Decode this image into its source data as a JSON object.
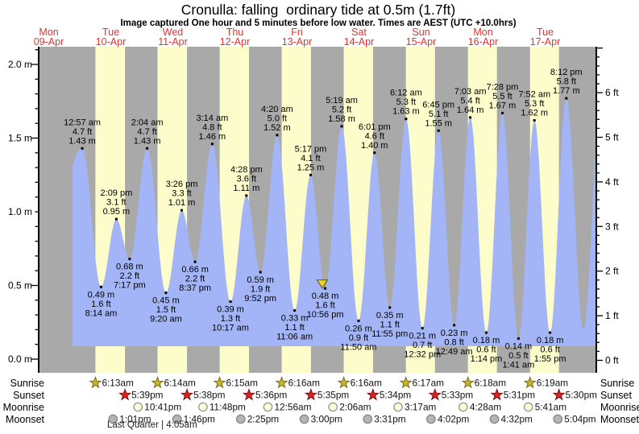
{
  "title": "Cronulla: falling  ordinary tide at 0.5m (1.7ft)",
  "subtitle": "Image captured One hour and 5 minutes before low water. Times are AEST (UTC +10.0hrs)",
  "chart_data": {
    "type": "area",
    "title": "Cronulla: falling  ordinary tide at 0.5m (1.7ft)",
    "ylabel_left": "meters",
    "ylabel_right": "feet",
    "ylim_m": [
      0.0,
      2.0
    ],
    "ylim_ft": [
      0,
      6
    ],
    "y_axis_left_labels": [
      "2.0 m",
      "1.5 m",
      "1.0 m",
      "0.5 m",
      "0.0 m"
    ],
    "y_axis_right_labels": [
      "6 ft",
      "5 ft",
      "4 ft",
      "3 ft",
      "2 ft",
      "1 ft",
      "0 ft"
    ],
    "days": [
      {
        "weekday": "Mon",
        "date": "09-Apr"
      },
      {
        "weekday": "Tue",
        "date": "10-Apr"
      },
      {
        "weekday": "Wed",
        "date": "11-Apr"
      },
      {
        "weekday": "Thu",
        "date": "12-Apr"
      },
      {
        "weekday": "Fri",
        "date": "13-Apr"
      },
      {
        "weekday": "Sat",
        "date": "14-Apr"
      },
      {
        "weekday": "Sun",
        "date": "15-Apr"
      },
      {
        "weekday": "Mon",
        "date": "16-Apr"
      },
      {
        "weekday": "Tue",
        "date": "17-Apr"
      }
    ],
    "extremes": [
      {
        "kind": "high",
        "day": 1,
        "time": "12:57 am",
        "ft": "4.7",
        "m": 1.43
      },
      {
        "kind": "low",
        "day": 1,
        "time": "8:14 am",
        "ft": "1.6",
        "m": 0.49
      },
      {
        "kind": "high",
        "day": 1,
        "time": "2:09 pm",
        "ft": "3.1",
        "m": 0.95
      },
      {
        "kind": "low",
        "day": 1,
        "time": "7:17 pm",
        "ft": "2.2",
        "m": 0.68
      },
      {
        "kind": "high",
        "day": 2,
        "time": "2:04 am",
        "ft": "4.7",
        "m": 1.43
      },
      {
        "kind": "low",
        "day": 2,
        "time": "9:20 am",
        "ft": "1.5",
        "m": 0.45
      },
      {
        "kind": "high",
        "day": 2,
        "time": "3:26 pm",
        "ft": "3.3",
        "m": 1.01
      },
      {
        "kind": "low",
        "day": 2,
        "time": "8:37 pm",
        "ft": "2.2",
        "m": 0.66
      },
      {
        "kind": "high",
        "day": 3,
        "time": "3:14 am",
        "ft": "4.8",
        "m": 1.46
      },
      {
        "kind": "low",
        "day": 3,
        "time": "10:17 am",
        "ft": "1.3",
        "m": 0.39
      },
      {
        "kind": "high",
        "day": 3,
        "time": "4:28 pm",
        "ft": "3.6",
        "m": 1.11
      },
      {
        "kind": "low",
        "day": 3,
        "time": "9:52 pm",
        "ft": "1.9",
        "m": 0.59
      },
      {
        "kind": "high",
        "day": 4,
        "time": "4:20 am",
        "ft": "5.0",
        "m": 1.52
      },
      {
        "kind": "low",
        "day": 4,
        "time": "11:06 am",
        "ft": "1.1",
        "m": 0.33
      },
      {
        "kind": "high",
        "day": 4,
        "time": "5:17 pm",
        "ft": "4.1",
        "m": 1.25
      },
      {
        "kind": "low",
        "day": 4,
        "time": "10:56 pm",
        "ft": "1.6",
        "m": 0.48,
        "current_marker": true
      },
      {
        "kind": "high",
        "day": 5,
        "time": "5:19 am",
        "ft": "5.2",
        "m": 1.58
      },
      {
        "kind": "low",
        "day": 5,
        "time": "11:50 am",
        "ft": "0.9",
        "m": 0.26
      },
      {
        "kind": "high",
        "day": 5,
        "time": "6:01 pm",
        "ft": "4.6",
        "m": 1.4
      },
      {
        "kind": "low",
        "day": 5,
        "time": "11:55 pm",
        "ft": "1.1",
        "m": 0.35
      },
      {
        "kind": "high",
        "day": 6,
        "time": "6:12 am",
        "ft": "5.3",
        "m": 1.63
      },
      {
        "kind": "low",
        "day": 6,
        "time": "12:32 pm",
        "ft": "0.7",
        "m": 0.21
      },
      {
        "kind": "high",
        "day": 6,
        "time": "6:45 pm",
        "ft": "5.1",
        "m": 1.55
      },
      {
        "kind": "low",
        "day": 7,
        "time": "12:49 am",
        "ft": "0.8",
        "m": 0.23
      },
      {
        "kind": "high",
        "day": 7,
        "time": "7:03 am",
        "ft": "5.4",
        "m": 1.64
      },
      {
        "kind": "low",
        "day": 7,
        "time": "1:14 pm",
        "ft": "0.6",
        "m": 0.18
      },
      {
        "kind": "high",
        "day": 7,
        "time": "7:28 pm",
        "ft": "5.5",
        "m": 1.67
      },
      {
        "kind": "low",
        "day": 8,
        "time": "1:41 am",
        "ft": "0.5",
        "m": 0.14
      },
      {
        "kind": "high",
        "day": 8,
        "time": "7:52 am",
        "ft": "5.3",
        "m": 1.62
      },
      {
        "kind": "low",
        "day": 8,
        "time": "1:55 pm",
        "ft": "0.6",
        "m": 0.18
      },
      {
        "kind": "high",
        "day": 8,
        "time": "8:12 pm",
        "ft": "5.8",
        "m": 1.77
      }
    ],
    "current_marker": {
      "shape": "yellow-triangle-down",
      "at_low_time": "10:56 pm",
      "day": 4,
      "tide_level": "0.5m (1.7ft)"
    }
  },
  "astro": {
    "row_labels_left": [
      "Sunrise",
      "Sunset",
      "Moonrise",
      "Moonset"
    ],
    "row_labels_right": [
      "Sunrise",
      "Sunset",
      "Moonrise",
      "Moonset"
    ],
    "sunrise": [
      {
        "day": 0,
        "time": "6:13am"
      },
      {
        "day": 1,
        "time": "6:14am"
      },
      {
        "day": 2,
        "time": "6:15am"
      },
      {
        "day": 3,
        "time": "6:16am"
      },
      {
        "day": 4,
        "time": "6:16am"
      },
      {
        "day": 5,
        "time": "6:17am"
      },
      {
        "day": 6,
        "time": "6:18am"
      },
      {
        "day": 7,
        "time": "6:19am"
      }
    ],
    "sunset": [
      {
        "day": 0,
        "time": "5:39pm"
      },
      {
        "day": 1,
        "time": "5:38pm"
      },
      {
        "day": 2,
        "time": "5:36pm"
      },
      {
        "day": 3,
        "time": "5:35pm"
      },
      {
        "day": 4,
        "time": "5:34pm"
      },
      {
        "day": 5,
        "time": "5:33pm"
      },
      {
        "day": 6,
        "time": "5:31pm"
      },
      {
        "day": 7,
        "time": "5:30pm"
      }
    ],
    "moonrise": [
      {
        "day": 0,
        "time": "10:41pm"
      },
      {
        "day": 1,
        "time": "11:48pm"
      },
      {
        "day": 3,
        "time": "12:56am"
      },
      {
        "day": 4,
        "time": "2:06am"
      },
      {
        "day": 5,
        "time": "3:17am"
      },
      {
        "day": 6,
        "time": "4:28am"
      },
      {
        "day": 7,
        "time": "5:41am"
      }
    ],
    "moonset": [
      {
        "day": 0,
        "time": "1:01pm"
      },
      {
        "day": 1,
        "time": "1:46pm"
      },
      {
        "day": 2,
        "time": "2:25pm"
      },
      {
        "day": 3,
        "time": "3:00pm"
      },
      {
        "day": 4,
        "time": "3:31pm"
      },
      {
        "day": 5,
        "time": "4:02pm"
      },
      {
        "day": 6,
        "time": "4:32pm"
      },
      {
        "day": 7,
        "time": "5:04pm"
      }
    ],
    "moon_phase": "Last Quarter | 4:05am"
  },
  "colors": {
    "night_band": "#a9a9a9",
    "day_band": "#fdfdcb",
    "tide_fill": "#a3b5f6",
    "day_label_red": "#e23333",
    "sunrise_star_fill": "#c9b62b",
    "sunrise_star_stroke": "#7a6c12",
    "sunset_star_fill": "#dd2222",
    "sunset_star_stroke": "#7a1010",
    "moonrise_fill": "#ffffd6",
    "moonrise_stroke": "#9a9a9a",
    "moonset_fill": "#b5b5b5",
    "moonset_stroke": "#8a8a8a",
    "marker_triangle_fill": "#f0d428",
    "marker_triangle_stroke": "#55521a",
    "text": "#000000"
  }
}
